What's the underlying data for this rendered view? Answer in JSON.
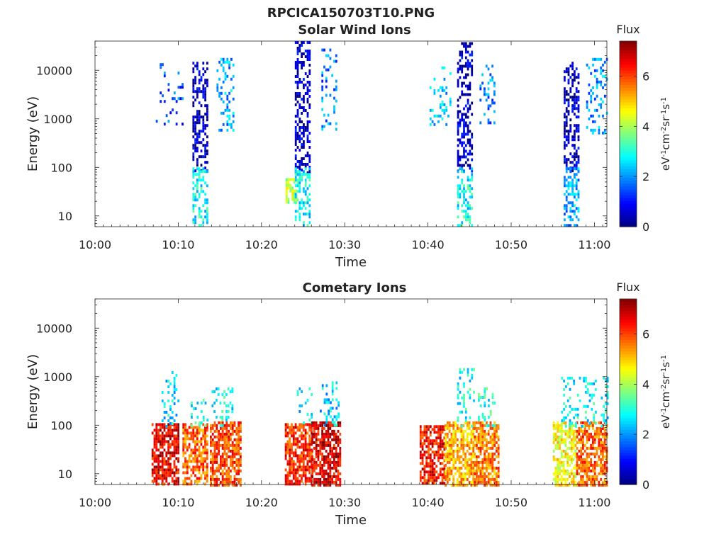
{
  "figure": {
    "title": "RPCICA150703T10.PNG"
  },
  "colorbar": {
    "title": "Flux",
    "unit_parts": [
      "eV",
      "-1",
      "cm",
      "-2",
      "sr",
      "-1",
      "s",
      "-1"
    ],
    "range": [
      0,
      7.4
    ],
    "ticks": [
      0,
      2,
      4,
      6
    ],
    "tick_labels": [
      "0",
      "2",
      "4",
      "6"
    ]
  },
  "chart_data": [
    {
      "type": "heatmap",
      "title": "Solar Wind Ions",
      "xlabel": "Time",
      "ylabel": "Energy (eV)",
      "x_range_min": [
        0,
        61.5
      ],
      "x_tick_values": [
        0,
        10,
        20,
        30,
        40,
        50,
        60
      ],
      "x_tick_labels": [
        "10:00",
        "10:10",
        "10:20",
        "10:30",
        "10:40",
        "10:50",
        "11:00"
      ],
      "yscale": "log",
      "ylim": [
        6,
        40000
      ],
      "y_tick_values": [
        10,
        100,
        1000,
        10000
      ],
      "y_tick_labels": [
        "10",
        "100",
        "1000",
        "10000"
      ],
      "color_scale": "jet",
      "color_range": [
        0,
        7.4
      ],
      "grid": false,
      "bursts": [
        {
          "t": [
            7.3,
            10.6
          ],
          "e": [
            700,
            14000
          ],
          "level": 1.5,
          "density": 0.12
        },
        {
          "t": [
            11.7,
            13.4
          ],
          "e": [
            80,
            15000
          ],
          "level": 0.5,
          "density": 0.45
        },
        {
          "t": [
            11.7,
            13.4
          ],
          "e": [
            6,
            100
          ],
          "level": 2.8,
          "density": 0.45
        },
        {
          "t": [
            14.6,
            16.6
          ],
          "e": [
            600,
            18000
          ],
          "level": 2.2,
          "density": 0.25
        },
        {
          "t": [
            22.9,
            24.2
          ],
          "e": [
            20,
            60
          ],
          "level": 4.0,
          "density": 0.7
        },
        {
          "t": [
            24.0,
            25.8
          ],
          "e": [
            80,
            40000
          ],
          "level": 0.5,
          "density": 0.45
        },
        {
          "t": [
            24.0,
            25.8
          ],
          "e": [
            6,
            100
          ],
          "level": 2.8,
          "density": 0.45
        },
        {
          "t": [
            27.2,
            29.0
          ],
          "e": [
            600,
            28000
          ],
          "level": 1.8,
          "density": 0.2
        },
        {
          "t": [
            40.2,
            42.6
          ],
          "e": [
            800,
            12000
          ],
          "level": 2.3,
          "density": 0.2
        },
        {
          "t": [
            43.5,
            45.3
          ],
          "e": [
            80,
            38000
          ],
          "level": 0.5,
          "density": 0.45
        },
        {
          "t": [
            43.5,
            45.3
          ],
          "e": [
            6,
            100
          ],
          "level": 2.8,
          "density": 0.45
        },
        {
          "t": [
            46.2,
            48.0
          ],
          "e": [
            700,
            13000
          ],
          "level": 1.8,
          "density": 0.2
        },
        {
          "t": [
            56.3,
            58.0
          ],
          "e": [
            80,
            15000
          ],
          "level": 0.5,
          "density": 0.45
        },
        {
          "t": [
            56.3,
            58.0
          ],
          "e": [
            6,
            100
          ],
          "level": 2.2,
          "density": 0.45
        },
        {
          "t": [
            59.0,
            61.5
          ],
          "e": [
            500,
            18000
          ],
          "level": 2.0,
          "density": 0.25
        }
      ]
    },
    {
      "type": "heatmap",
      "title": "Cometary Ions",
      "xlabel": "Time",
      "ylabel": "Energy (eV)",
      "x_range_min": [
        0,
        61.5
      ],
      "x_tick_values": [
        0,
        10,
        20,
        30,
        40,
        50,
        60
      ],
      "x_tick_labels": [
        "10:00",
        "10:10",
        "10:20",
        "10:30",
        "10:40",
        "10:50",
        "11:00"
      ],
      "yscale": "log",
      "ylim": [
        6,
        40000
      ],
      "y_tick_values": [
        10,
        100,
        1000,
        10000
      ],
      "y_tick_labels": [
        "10",
        "100",
        "1000",
        "10000"
      ],
      "color_scale": "jet",
      "color_range": [
        0,
        7.4
      ],
      "grid": false,
      "bursts": [
        {
          "t": [
            6.8,
            10.0
          ],
          "e": [
            6,
            110
          ],
          "level": 6.6,
          "density": 0.75
        },
        {
          "t": [
            8.0,
            10.0
          ],
          "e": [
            100,
            1300
          ],
          "level": 2.5,
          "density": 0.2
        },
        {
          "t": [
            10.5,
            13.5
          ],
          "e": [
            6,
            110
          ],
          "level": 5.8,
          "density": 0.7
        },
        {
          "t": [
            11.5,
            13.5
          ],
          "e": [
            100,
            400
          ],
          "level": 2.8,
          "density": 0.25
        },
        {
          "t": [
            13.8,
            17.5
          ],
          "e": [
            6,
            120
          ],
          "level": 6.0,
          "density": 0.7
        },
        {
          "t": [
            14.0,
            16.5
          ],
          "e": [
            100,
            600
          ],
          "level": 2.8,
          "density": 0.25
        },
        {
          "t": [
            22.8,
            26.0
          ],
          "e": [
            6,
            110
          ],
          "level": 6.2,
          "density": 0.75
        },
        {
          "t": [
            24.0,
            26.0
          ],
          "e": [
            100,
            600
          ],
          "level": 2.6,
          "density": 0.2
        },
        {
          "t": [
            26.0,
            29.5
          ],
          "e": [
            6,
            120
          ],
          "level": 6.7,
          "density": 0.75
        },
        {
          "t": [
            27.0,
            29.2
          ],
          "e": [
            100,
            800
          ],
          "level": 2.5,
          "density": 0.25
        },
        {
          "t": [
            39.0,
            42.0
          ],
          "e": [
            6,
            100
          ],
          "level": 6.4,
          "density": 0.7
        },
        {
          "t": [
            42.0,
            45.5
          ],
          "e": [
            6,
            120
          ],
          "level": 5.2,
          "density": 0.7
        },
        {
          "t": [
            43.5,
            45.5
          ],
          "e": [
            100,
            1500
          ],
          "level": 2.8,
          "density": 0.25
        },
        {
          "t": [
            45.5,
            48.5
          ],
          "e": [
            6,
            120
          ],
          "level": 5.6,
          "density": 0.7
        },
        {
          "t": [
            46.0,
            48.0
          ],
          "e": [
            100,
            600
          ],
          "level": 3.0,
          "density": 0.25
        },
        {
          "t": [
            55.0,
            57.8
          ],
          "e": [
            6,
            120
          ],
          "level": 4.6,
          "density": 0.65
        },
        {
          "t": [
            57.8,
            61.5
          ],
          "e": [
            6,
            120
          ],
          "level": 5.8,
          "density": 0.7
        },
        {
          "t": [
            56.0,
            61.5
          ],
          "e": [
            100,
            1000
          ],
          "level": 2.8,
          "density": 0.25
        }
      ]
    }
  ]
}
